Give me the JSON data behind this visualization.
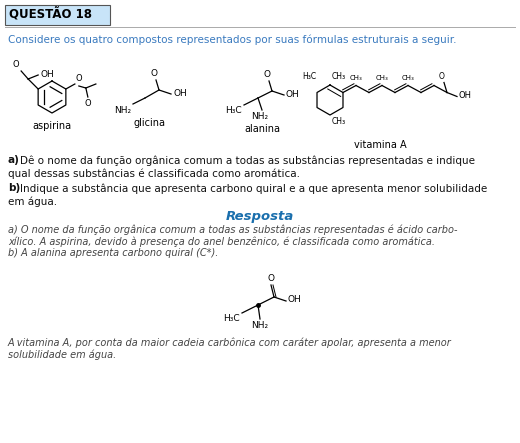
{
  "title_box_text": "QUESTÃO 18",
  "title_box_bg": "#c8e4f8",
  "title_box_border": "#888888",
  "background_color": "#ffffff",
  "intro_text": "Considere os quatro compostos representados por suas fórmulas estruturais a seguir.",
  "intro_color": "#3a7abf",
  "resposta_label": "Resposta",
  "resposta_color": "#1a6fad",
  "answer_a_line1": "a) O nome da função orgânica comum a todas as substâncias representadas é ácido carbo-",
  "answer_a_line2": "xílico. A aspirina, devido à presença do anel benzênico, é classificada como aromática.",
  "answer_a_line3": "b) A alanina apresenta carbono quiral (C*).",
  "answer_b_line1": "A vitamina A, por conta da maior cadeia carbônica com caráter apolar, apresenta a menor",
  "answer_b_line2": "solubilidade em água.",
  "qa_bold_a": "a)",
  "qa_text_a": " Dê o nome da função orgânica comum a todas as substâncias representadas e indique",
  "qa_text_a2": "qual dessas substâncias é classificada como aromática.",
  "qa_bold_b": "b)",
  "qa_text_b": " Indique a substância que apresenta carbono quiral e a que apresenta menor solubilidade",
  "qa_text_b2": "em água.",
  "text_color": "#111111",
  "italic_color": "#444444"
}
